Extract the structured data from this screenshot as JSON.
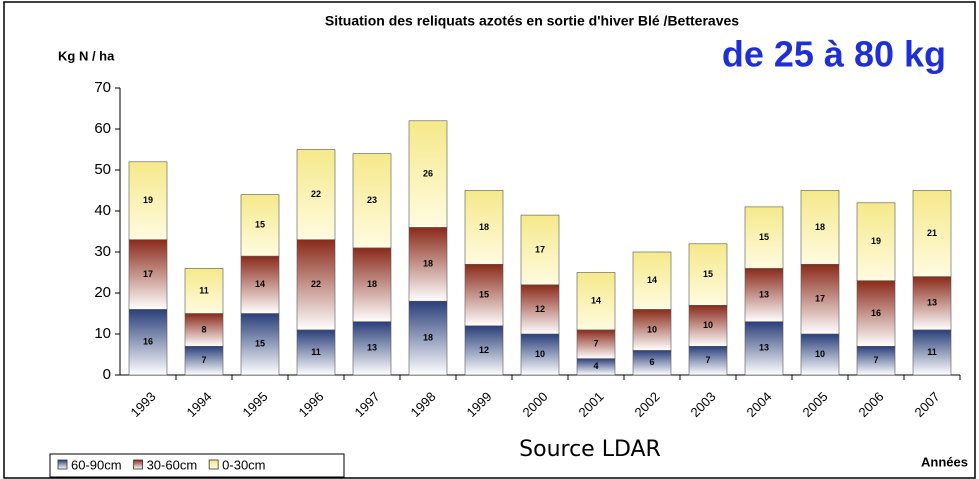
{
  "chart_data": {
    "type": "stacked_bar",
    "title": "Situation des reliquats azotés en sortie d'hiver Blé /Betteraves",
    "y_label": "Kg N / ha",
    "x_label": "Années",
    "annotation": "de 25 à 80 kg",
    "source": "Source LDAR",
    "categories": [
      "1993",
      "1994",
      "1995",
      "1996",
      "1997",
      "1998",
      "1999",
      "2000",
      "2001",
      "2002",
      "2003",
      "2004",
      "2005",
      "2006",
      "2007"
    ],
    "series": [
      {
        "name": "60-90cm",
        "color": "#2a3f7a",
        "values": [
          16,
          7,
          15,
          11,
          13,
          18,
          12,
          10,
          4,
          6,
          7,
          13,
          10,
          7,
          11
        ]
      },
      {
        "name": "30-60cm",
        "color": "#8a2a1a",
        "values": [
          17,
          8,
          14,
          22,
          18,
          18,
          15,
          12,
          7,
          10,
          10,
          13,
          17,
          16,
          13
        ]
      },
      {
        "name": "0-30cm",
        "color": "#f5e98a",
        "values": [
          19,
          11,
          15,
          22,
          23,
          26,
          18,
          17,
          14,
          14,
          15,
          15,
          18,
          19,
          21
        ]
      }
    ],
    "ylim": [
      0,
      70
    ],
    "yticks": [
      0,
      10,
      20,
      30,
      40,
      50,
      60,
      70
    ],
    "grid": false,
    "legend": "bottom-left"
  }
}
